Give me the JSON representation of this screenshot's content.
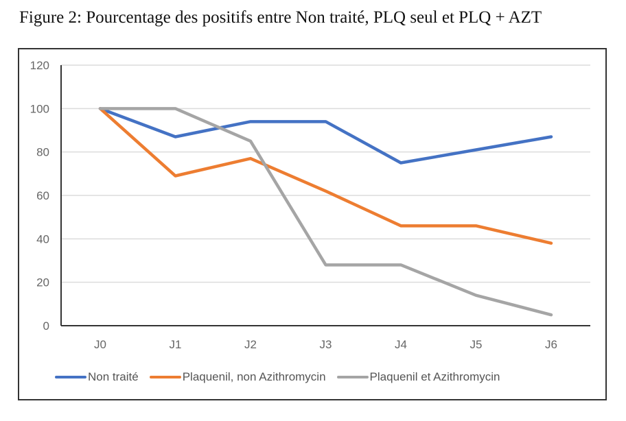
{
  "title": "Figure 2: Pourcentage des positifs entre Non traité, PLQ seul et PLQ + AZT",
  "chart_data": {
    "type": "line",
    "title": "Figure 2: Pourcentage des positifs entre Non traité, PLQ seul et PLQ + AZT",
    "xlabel": "",
    "ylabel": "",
    "categories": [
      "J0",
      "J1",
      "J2",
      "J3",
      "J4",
      "J5",
      "J6"
    ],
    "ylim": [
      0,
      120
    ],
    "yticks": [
      0,
      20,
      40,
      60,
      80,
      100,
      120
    ],
    "ytick_labels": [
      "0",
      "20",
      "40",
      "60",
      "80",
      "100",
      "120"
    ],
    "grid": true,
    "legend_position": "bottom",
    "series": [
      {
        "name": "Non traité",
        "color": "#4472C4",
        "values": [
          100,
          87,
          94,
          94,
          75,
          81,
          87
        ]
      },
      {
        "name": "Plaquenil, non Azithromycin",
        "color": "#ED7D31",
        "values": [
          100,
          69,
          77,
          62,
          46,
          46,
          38
        ]
      },
      {
        "name": "Plaquenil et Azithromycin",
        "color": "#A5A5A5",
        "values": [
          100,
          100,
          85,
          28,
          28,
          14,
          5
        ]
      }
    ]
  }
}
